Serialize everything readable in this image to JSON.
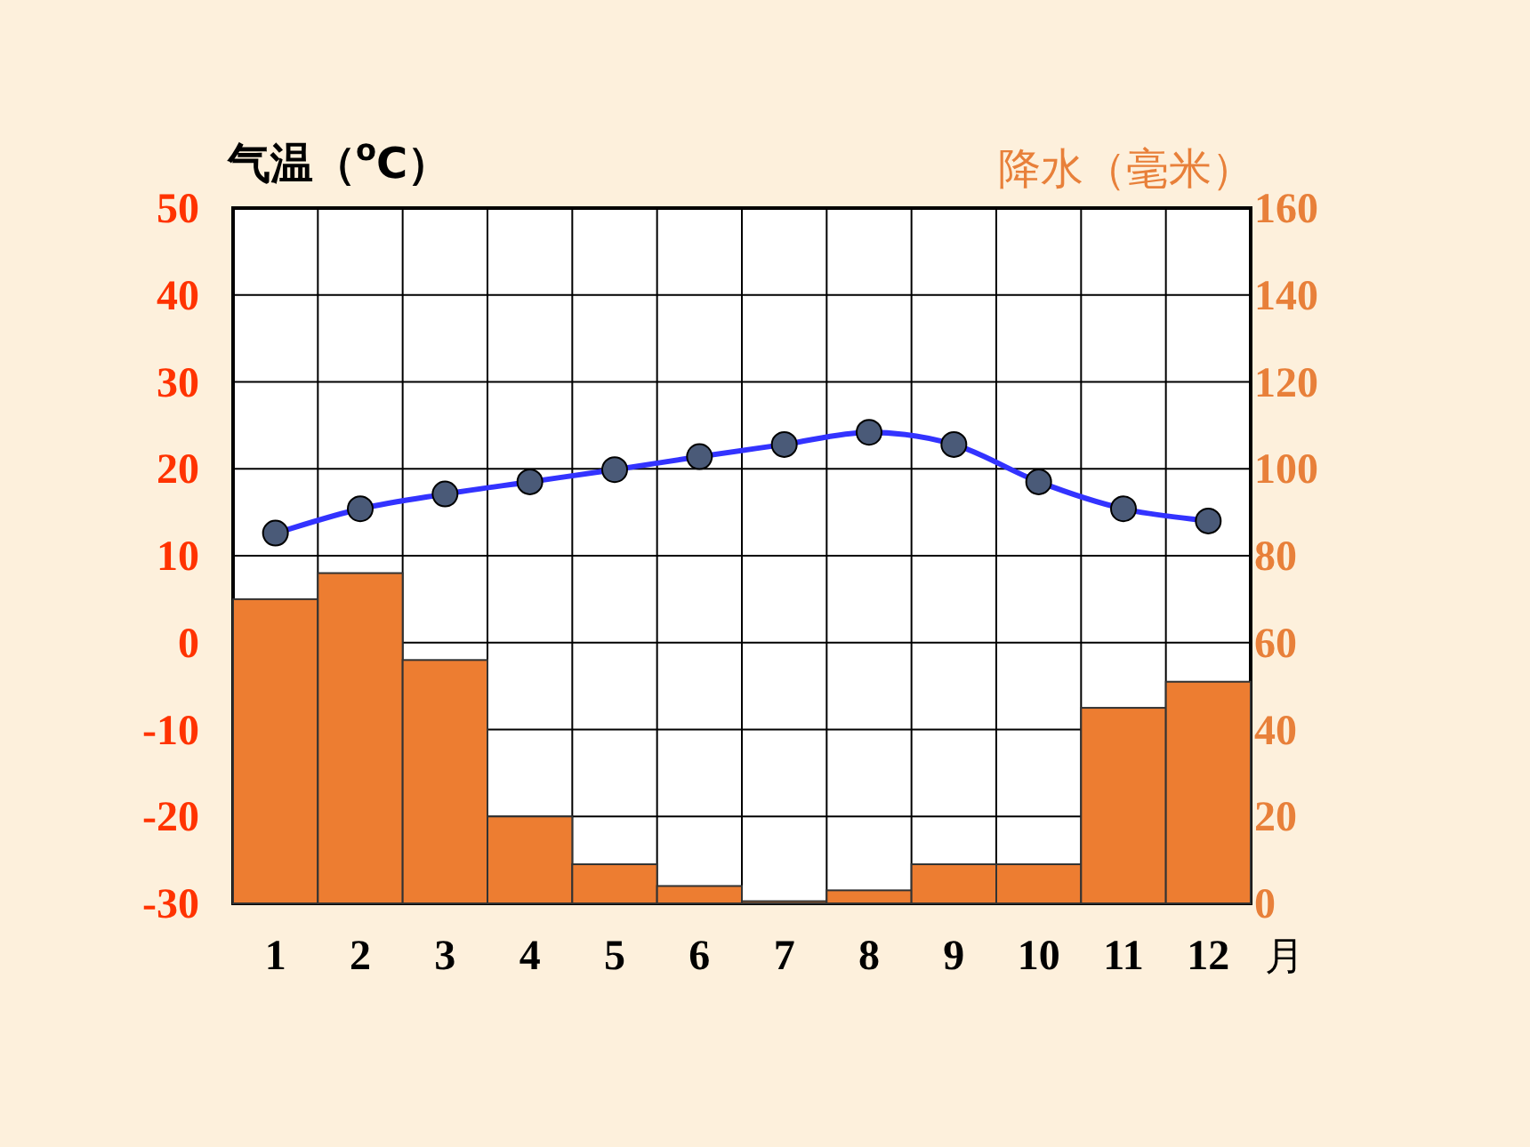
{
  "chart_data": {
    "type": "bar",
    "categories": [
      "1",
      "2",
      "3",
      "4",
      "5",
      "6",
      "7",
      "8",
      "9",
      "10",
      "11",
      "12"
    ],
    "xlabel": "月",
    "ylabel": "气温（$^{o}$C）",
    "y2label": "降水（毫米）",
    "ylim": [
      -30,
      50
    ],
    "yticks": [
      -30,
      -20,
      -10,
      0,
      10,
      20,
      30,
      40,
      50
    ],
    "y2lim": [
      0,
      160
    ],
    "y2ticks": [
      0,
      20,
      40,
      60,
      80,
      100,
      120,
      140,
      160
    ],
    "grid": true,
    "series": [
      {
        "axis": "y2",
        "color": "#ed7d31",
        "values": [
          70,
          76,
          56,
          20,
          9,
          4,
          0.5,
          3,
          9,
          9,
          45,
          51
        ]
      },
      {
        "type": "line",
        "axis": "y",
        "color": "#3333ff",
        "marker": "circle",
        "line_style": "solid",
        "values": [
          12.6,
          15.4,
          17.1,
          18.5,
          19.9,
          21.4,
          22.8,
          24.2,
          22.8,
          18.5,
          15.4,
          14.0
        ]
      }
    ]
  }
}
